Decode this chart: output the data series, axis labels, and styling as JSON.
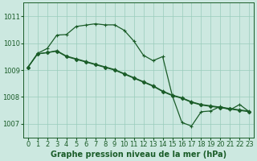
{
  "bg_color": "#cce8e0",
  "grid_color": "#99ccbb",
  "line_color": "#1a5c28",
  "xlabel": "Graphe pression niveau de la mer (hPa)",
  "xlabel_fontsize": 7,
  "tick_fontsize": 6,
  "yticks": [
    1007,
    1008,
    1009,
    1010,
    1011
  ],
  "ylim": [
    1006.5,
    1011.5
  ],
  "xlim": [
    -0.5,
    23.5
  ],
  "xticks": [
    0,
    1,
    2,
    3,
    4,
    5,
    6,
    7,
    8,
    9,
    10,
    11,
    12,
    13,
    14,
    15,
    16,
    17,
    18,
    19,
    20,
    21,
    22,
    23
  ],
  "series": [
    {
      "x": [
        0,
        1,
        2,
        3,
        4,
        5,
        6,
        7,
        8,
        9,
        10,
        11,
        12,
        13,
        14,
        15,
        16,
        17,
        18,
        19,
        20,
        21,
        22,
        23
      ],
      "y": [
        1009.1,
        1009.6,
        1009.65,
        1009.7,
        1009.5,
        1009.4,
        1009.3,
        1009.2,
        1009.1,
        1009.0,
        1008.85,
        1008.7,
        1008.55,
        1008.4,
        1008.2,
        1008.05,
        1007.95,
        1007.8,
        1007.7,
        1007.65,
        1007.6,
        1007.55,
        1007.5,
        1007.45
      ],
      "marker": "D",
      "markersize": 2.2,
      "lw": 0.9
    },
    {
      "x": [
        0,
        1,
        2,
        3,
        4,
        5,
        6,
        7,
        8,
        9,
        10,
        11,
        12,
        13,
        14,
        15,
        16,
        17,
        18,
        19,
        20,
        21,
        22,
        23
      ],
      "y": [
        1009.1,
        1009.6,
        1009.65,
        1009.72,
        1009.52,
        1009.42,
        1009.32,
        1009.22,
        1009.12,
        1009.02,
        1008.87,
        1008.72,
        1008.57,
        1008.42,
        1008.22,
        1008.07,
        1007.97,
        1007.82,
        1007.72,
        1007.67,
        1007.62,
        1007.57,
        1007.52,
        1007.47
      ],
      "marker": "+",
      "markersize": 3.5,
      "lw": 0.9
    },
    {
      "x": [
        0,
        1,
        2,
        3,
        4,
        5,
        6,
        7,
        8,
        9,
        10,
        11,
        12,
        13,
        14,
        15,
        16,
        17,
        18,
        19,
        20,
        21,
        22,
        23
      ],
      "y": [
        1009.1,
        1009.62,
        1009.8,
        1010.3,
        1010.32,
        1010.62,
        1010.67,
        1010.72,
        1010.68,
        1010.68,
        1010.48,
        1010.08,
        1009.55,
        1009.35,
        1009.5,
        1008.05,
        1007.05,
        1006.92,
        1007.45,
        1007.48,
        1007.65,
        1007.52,
        1007.72,
        1007.45
      ],
      "marker": "+",
      "markersize": 3.5,
      "lw": 0.9
    }
  ]
}
